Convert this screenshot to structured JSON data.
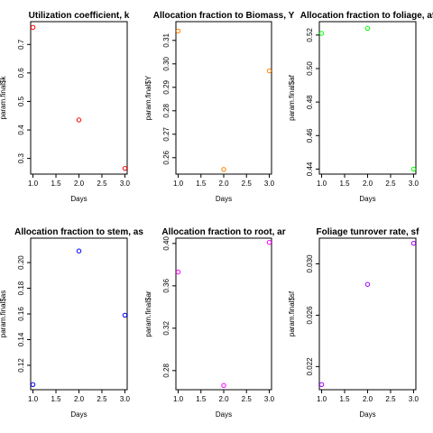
{
  "chart_data": [
    {
      "type": "scatter",
      "title": "Utilization coefficient, k",
      "xlabel": "Days",
      "ylabel": "param.final$k",
      "x": [
        1,
        2,
        3
      ],
      "y": [
        0.76,
        0.435,
        0.265
      ],
      "xlim": [
        0.95,
        3.05
      ],
      "ylim": [
        0.245,
        0.78
      ],
      "xticks": [
        1.0,
        1.5,
        2.0,
        2.5,
        3.0
      ],
      "xtick_labels": [
        "1.0",
        "1.5",
        "2.0",
        "2.5",
        "3.0"
      ],
      "yticks": [
        0.3,
        0.4,
        0.5,
        0.6,
        0.7
      ],
      "ytick_labels": [
        "0.3",
        "0.4",
        "0.5",
        "0.6",
        "0.7"
      ],
      "color": "#ff0000"
    },
    {
      "type": "scatter",
      "title": "Allocation fraction to Biomass, Y",
      "xlabel": "Days",
      "ylabel": "param.final$Y",
      "x": [
        1,
        2,
        3
      ],
      "y": [
        0.314,
        0.255,
        0.297
      ],
      "xlim": [
        0.95,
        3.05
      ],
      "ylim": [
        0.253,
        0.318
      ],
      "xticks": [
        1.0,
        1.5,
        2.0,
        2.5,
        3.0
      ],
      "xtick_labels": [
        "1.0",
        "1.5",
        "2.0",
        "2.5",
        "3.0"
      ],
      "yticks": [
        0.26,
        0.27,
        0.28,
        0.29,
        0.3,
        0.31
      ],
      "ytick_labels": [
        "0.26",
        "0.27",
        "0.28",
        "0.29",
        "0.30",
        "0.31"
      ],
      "color": "#ff8000"
    },
    {
      "type": "scatter",
      "title": "Allocation fraction to foliage, af",
      "xlabel": "Days",
      "ylabel": "param.final$af",
      "x": [
        1,
        2,
        3
      ],
      "y": [
        0.521,
        0.524,
        0.44
      ],
      "xlim": [
        0.95,
        3.05
      ],
      "ylim": [
        0.437,
        0.528
      ],
      "xticks": [
        1.0,
        1.5,
        2.0,
        2.5,
        3.0
      ],
      "xtick_labels": [
        "1.0",
        "1.5",
        "2.0",
        "2.5",
        "3.0"
      ],
      "yticks": [
        0.44,
        0.46,
        0.48,
        0.5,
        0.52
      ],
      "ytick_labels": [
        "0.44",
        "0.46",
        "0.48",
        "0.50",
        "0.52"
      ],
      "color": "#00ff00"
    },
    {
      "type": "scatter",
      "title": "Allocation fraction to stem, as",
      "xlabel": "Days",
      "ylabel": "param.final$as",
      "x": [
        1,
        2,
        3
      ],
      "y": [
        0.105,
        0.209,
        0.159
      ],
      "xlim": [
        0.95,
        3.05
      ],
      "ylim": [
        0.101,
        0.219
      ],
      "xticks": [
        1.0,
        1.5,
        2.0,
        2.5,
        3.0
      ],
      "xtick_labels": [
        "1.0",
        "1.5",
        "2.0",
        "2.5",
        "3.0"
      ],
      "yticks": [
        0.12,
        0.14,
        0.16,
        0.18,
        0.2
      ],
      "ytick_labels": [
        "0.12",
        "0.14",
        "0.16",
        "0.18",
        "0.20"
      ],
      "color": "#0000ff"
    },
    {
      "type": "scatter",
      "title": "Allocation fraction to root, ar",
      "xlabel": "Days",
      "ylabel": "param.final$ar",
      "x": [
        1,
        2,
        3
      ],
      "y": [
        0.373,
        0.266,
        0.401
      ],
      "xlim": [
        0.95,
        3.05
      ],
      "ylim": [
        0.262,
        0.405
      ],
      "xticks": [
        1.0,
        1.5,
        2.0,
        2.5,
        3.0
      ],
      "xtick_labels": [
        "1.0",
        "1.5",
        "2.0",
        "2.5",
        "3.0"
      ],
      "yticks": [
        0.28,
        0.32,
        0.36,
        0.4
      ],
      "ytick_labels": [
        "0.28",
        "0.32",
        "0.36",
        "0.40"
      ],
      "color": "#ff00ff"
    },
    {
      "type": "scatter",
      "title": "Foliage tunrover rate, sf",
      "xlabel": "Days",
      "ylabel": "param.final$sf",
      "x": [
        1,
        2,
        3
      ],
      "y": [
        0.0206,
        0.0284,
        0.0316
      ],
      "xlim": [
        0.95,
        3.05
      ],
      "ylim": [
        0.0202,
        0.032
      ],
      "xticks": [
        1.0,
        1.5,
        2.0,
        2.5,
        3.0
      ],
      "xtick_labels": [
        "1.0",
        "1.5",
        "2.0",
        "2.5",
        "3.0"
      ],
      "yticks": [
        0.022,
        0.026,
        0.03
      ],
      "ytick_labels": [
        "0.022",
        "0.026",
        "0.030"
      ],
      "color": "#a000ff"
    }
  ]
}
